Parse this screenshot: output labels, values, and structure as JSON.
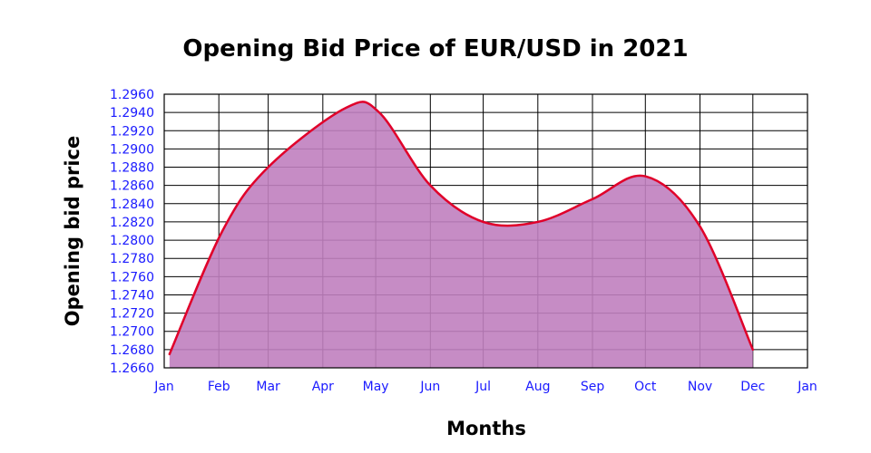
{
  "chart_data": {
    "type": "area",
    "title": "Opening Bid Price of EUR/USD in 2021",
    "xlabel": "Months",
    "ylabel": "Opening bid price",
    "x_ticks": [
      "Jan",
      "Feb",
      "Mar",
      "Apr",
      "May",
      "Jun",
      "Jul",
      "Aug",
      "Sep",
      "Oct",
      "Nov",
      "Dec",
      "Jan"
    ],
    "x_tick_dates": [
      "2021-01-01",
      "2021-02-01",
      "2021-03-01",
      "2021-04-01",
      "2021-05-01",
      "2021-06-01",
      "2021-07-01",
      "2021-08-01",
      "2021-09-01",
      "2021-10-01",
      "2021-11-01",
      "2021-12-01",
      "2022-01-01"
    ],
    "y_ticks": [
      "1.2660",
      "1.2680",
      "1.2700",
      "1.2720",
      "1.2740",
      "1.2760",
      "1.2780",
      "1.2800",
      "1.2820",
      "1.2840",
      "1.2860",
      "1.2880",
      "1.2900",
      "1.2920",
      "1.2940",
      "1.2960"
    ],
    "ylim": [
      1.266,
      1.296
    ],
    "xlim": [
      "2021-01-01",
      "2022-01-01"
    ],
    "grid": true,
    "series": [
      {
        "x": [
          "2021-01-04",
          "2021-02-03",
          "2021-03-01",
          "2021-04-14",
          "2021-05-03",
          "2021-06-01",
          "2021-07-01",
          "2021-08-01",
          "2021-09-01",
          "2021-10-01",
          "2021-11-01",
          "2021-12-01"
        ],
        "values": [
          1.2675,
          1.281,
          1.288,
          1.2945,
          1.294,
          1.286,
          1.282,
          1.282,
          1.2845,
          1.287,
          1.2815,
          1.268
        ]
      }
    ],
    "colors": {
      "fill": "#c07fbf",
      "line": "#e0002a",
      "grid": "#000000",
      "tick_text": "#1a1aff"
    }
  }
}
